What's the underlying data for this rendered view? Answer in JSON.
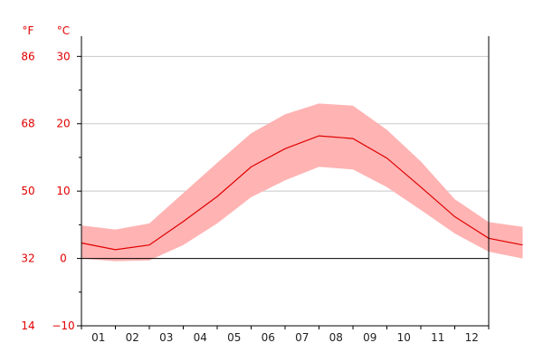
{
  "chart_data": {
    "type": "area",
    "unit_left": "°F",
    "unit_right": "°C",
    "x_ticks": [
      "01",
      "02",
      "03",
      "04",
      "05",
      "06",
      "07",
      "08",
      "09",
      "10",
      "11",
      "12"
    ],
    "y_celsius_ticks": [
      "30",
      "20",
      "10",
      "0",
      "−10"
    ],
    "y_fahrenheit_ticks": [
      "86",
      "68",
      "50",
      "32",
      "14"
    ],
    "ylim_celsius": [
      -10,
      33
    ],
    "grid": true,
    "series": [
      {
        "name": "",
        "role": "mean",
        "values": [
          2.3,
          1.3,
          2.0,
          5.5,
          9.2,
          13.6,
          16.3,
          18.2,
          17.8,
          14.9,
          10.6,
          6.2,
          3.0,
          2.0
        ]
      },
      {
        "name": "",
        "role": "max",
        "values": [
          4.9,
          4.3,
          5.2,
          9.7,
          14.2,
          18.6,
          21.4,
          23.0,
          22.7,
          19.1,
          14.4,
          8.8,
          5.4,
          4.7
        ]
      },
      {
        "name": "",
        "role": "min",
        "values": [
          0.0,
          -0.4,
          -0.3,
          2.0,
          5.2,
          9.1,
          11.6,
          13.6,
          13.2,
          10.6,
          7.2,
          3.7,
          1.0,
          0.0
        ]
      }
    ],
    "colors": {
      "band": "#ffb3b3",
      "line": "#e00000",
      "text": "#e00000",
      "grid": "#c8c8c8",
      "axis": "#000000"
    }
  }
}
